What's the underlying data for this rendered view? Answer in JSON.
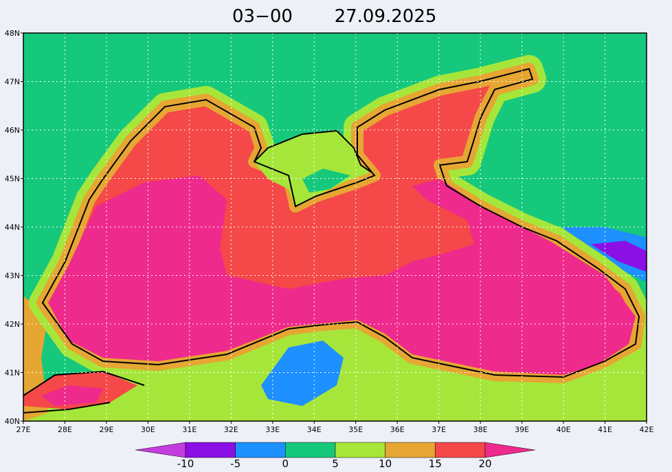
{
  "title": {
    "time": "03−00",
    "date": "27.09.2025"
  },
  "x_axis": {
    "labels": [
      "27E",
      "28E",
      "29E",
      "30E",
      "31E",
      "32E",
      "33E",
      "34E",
      "35E",
      "36E",
      "37E",
      "38E",
      "39E",
      "40E",
      "41E",
      "42E"
    ]
  },
  "y_axis": {
    "labels": [
      "40N",
      "41N",
      "42N",
      "43N",
      "44N",
      "45N",
      "46N",
      "47N",
      "48N"
    ]
  },
  "colorbar": {
    "levels": [
      -10,
      -5,
      0,
      5,
      10,
      15,
      20
    ],
    "colors": [
      "#c43ce0",
      "#8a10e6",
      "#1e90ff",
      "#16c87c",
      "#a6e63a",
      "#e6a633",
      "#f54848",
      "#ee2a8c"
    ]
  }
}
